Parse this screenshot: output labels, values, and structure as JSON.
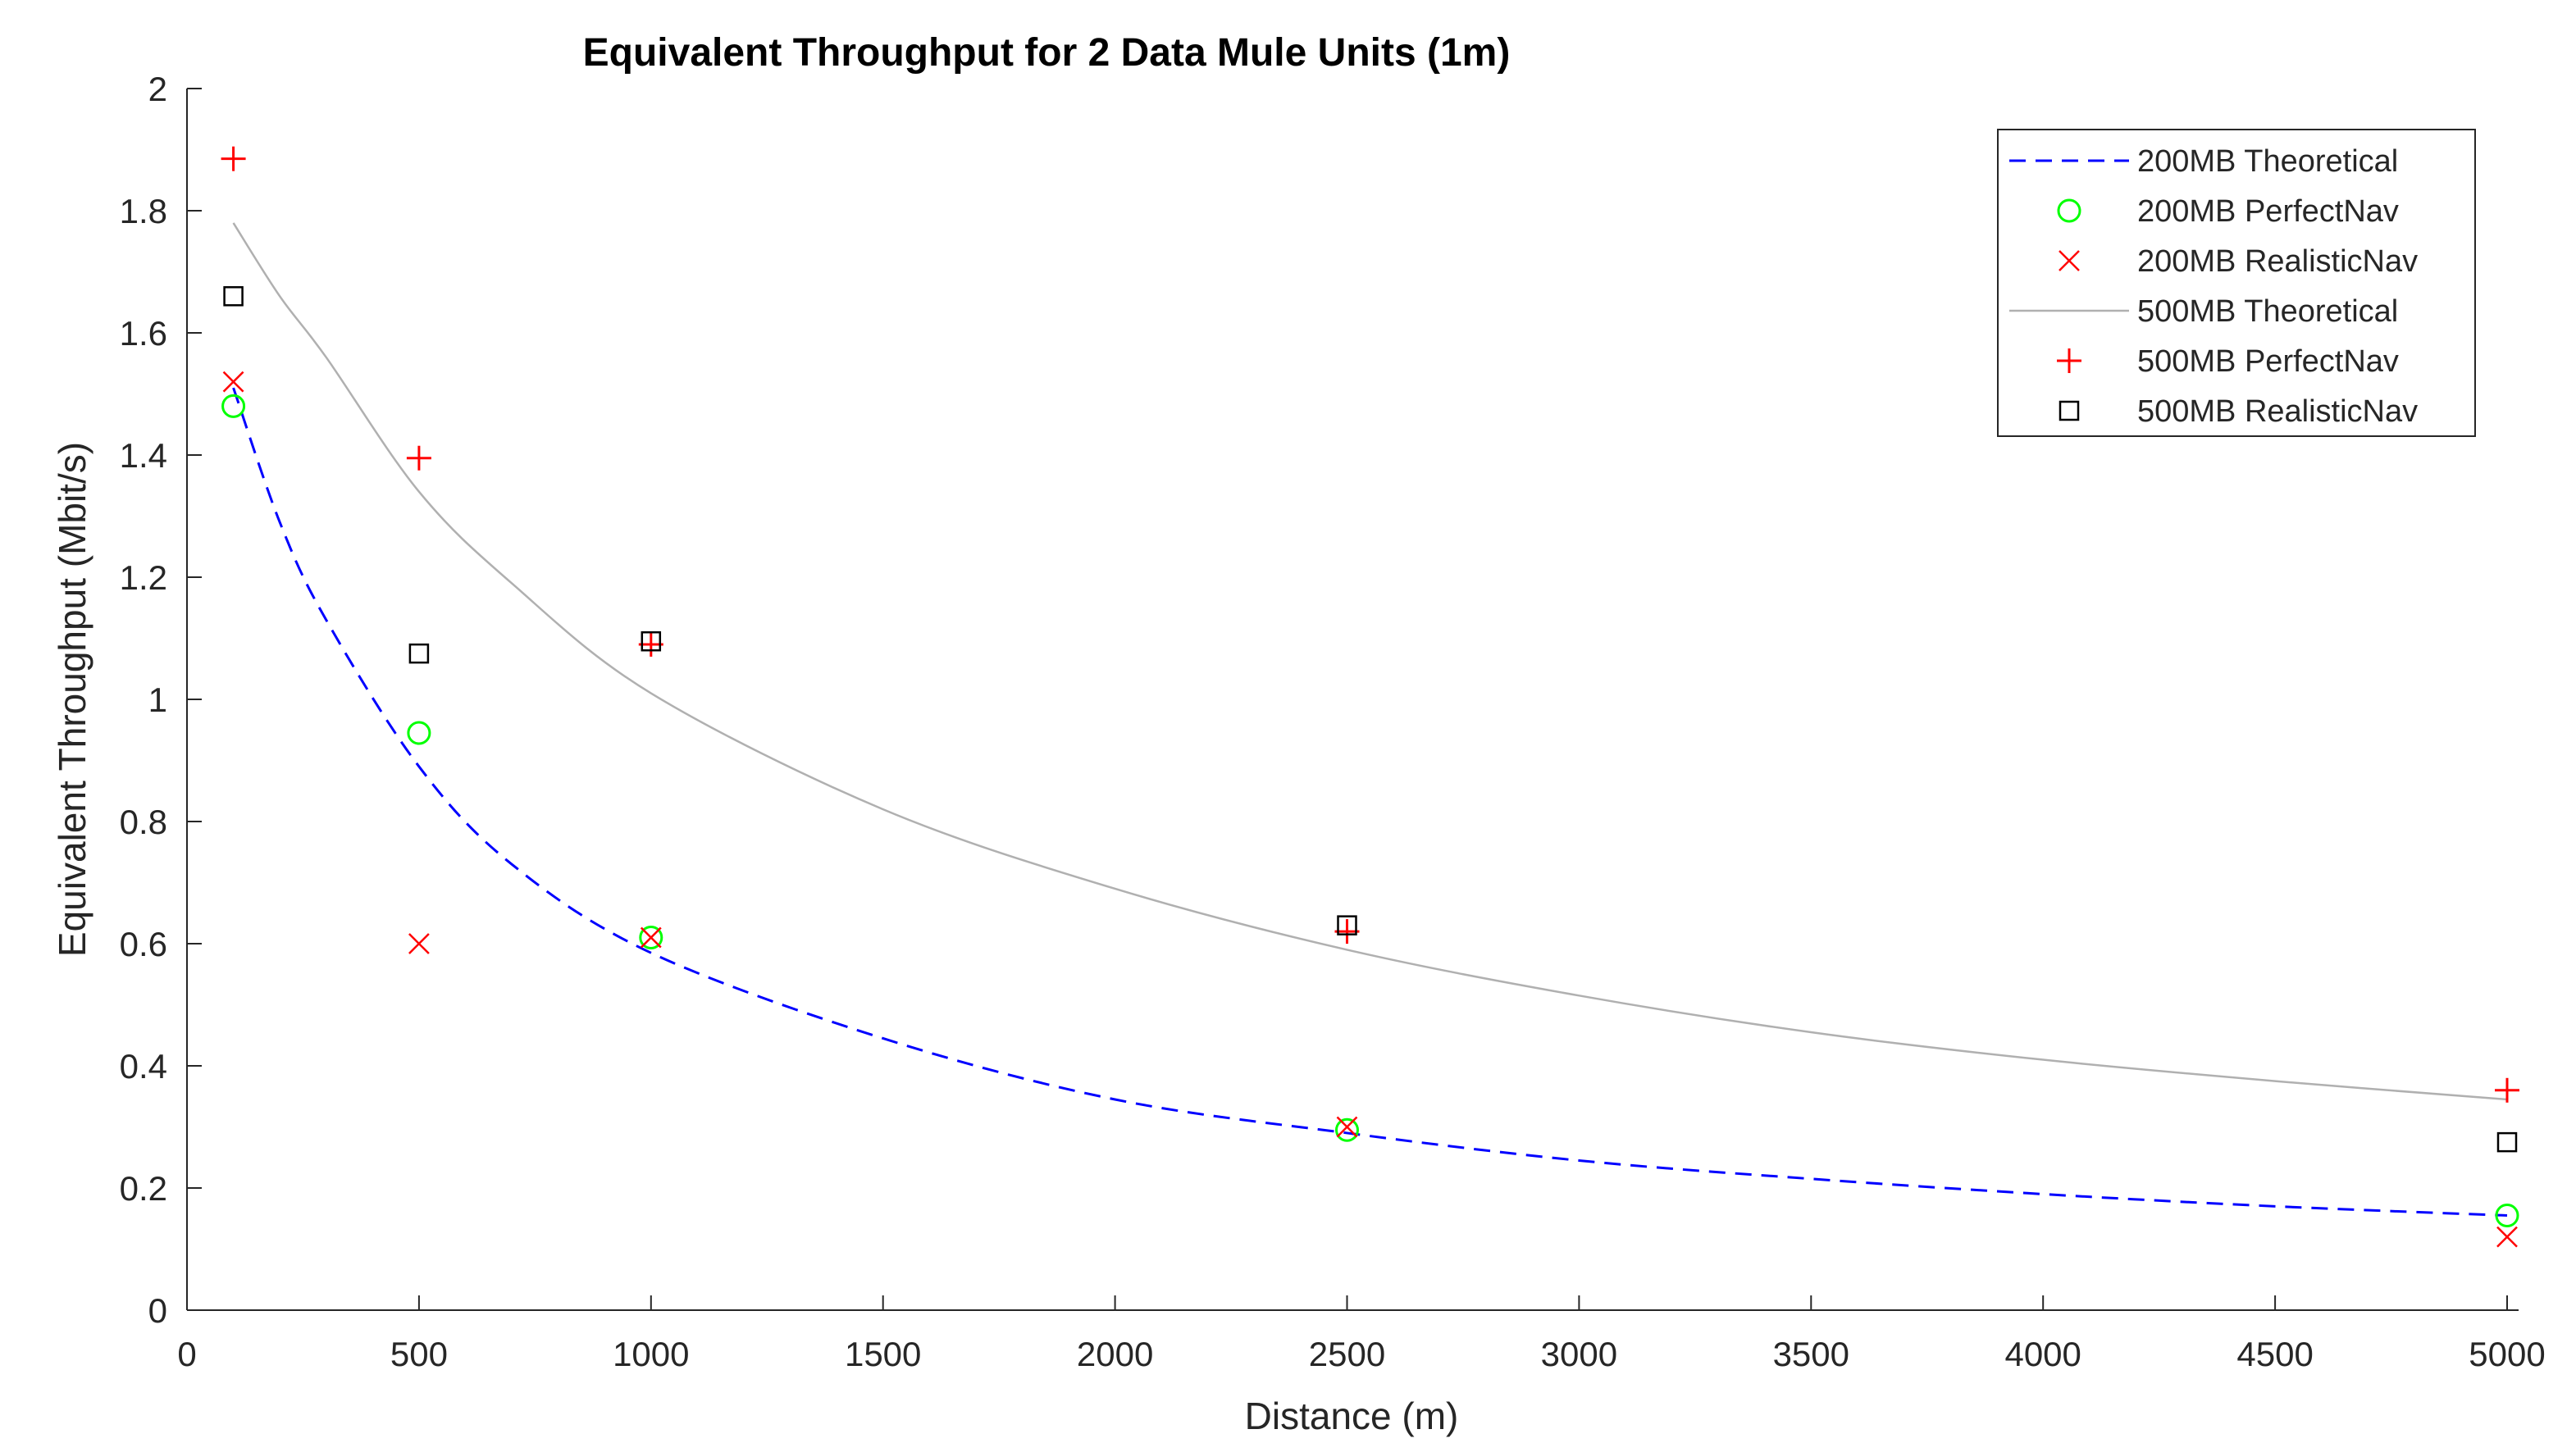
{
  "chart_data": {
    "type": "line",
    "title": "Equivalent Throughput for 2 Data Mule Units (1m)",
    "xlabel": "Distance (m)",
    "ylabel": "Equivalent Throughput (Mbit/s)",
    "xlim": [
      0,
      5000
    ],
    "ylim": [
      0,
      2
    ],
    "xticks": [
      0,
      500,
      1000,
      1500,
      2000,
      2500,
      3000,
      3500,
      4000,
      4500,
      5000
    ],
    "xtick_labels": [
      "0",
      "500",
      "1000",
      "1500",
      "2000",
      "2500",
      "3000",
      "3500",
      "4000",
      "4500",
      "5000"
    ],
    "yticks": [
      0,
      0.2,
      0.4,
      0.6,
      0.8,
      1,
      1.2,
      1.4,
      1.6,
      1.8,
      2
    ],
    "ytick_labels": [
      "0",
      "0.2",
      "0.4",
      "0.6",
      "0.8",
      "1",
      "1.2",
      "1.4",
      "1.6",
      "1.8",
      "2"
    ],
    "grid": false,
    "legend_position": "top-right",
    "series": [
      {
        "name": "200MB Theoretical",
        "style": "dashed-line",
        "color": "#0000ff",
        "x": [
          100,
          200,
          300,
          500,
          700,
          1000,
          1500,
          2000,
          2500,
          3000,
          3500,
          4000,
          4500,
          5000
        ],
        "y": [
          1.51,
          1.29,
          1.13,
          0.89,
          0.73,
          0.585,
          0.445,
          0.345,
          0.29,
          0.245,
          0.215,
          0.19,
          0.17,
          0.155
        ]
      },
      {
        "name": "200MB PerfectNav",
        "style": "circle-marker",
        "color": "#00ff00",
        "x": [
          100,
          500,
          1000,
          2500,
          5000
        ],
        "y": [
          1.48,
          0.945,
          0.61,
          0.295,
          0.155
        ]
      },
      {
        "name": "200MB RealisticNav",
        "style": "x-marker",
        "color": "#ff0000",
        "x": [
          100,
          500,
          1000,
          2500,
          5000
        ],
        "y": [
          1.52,
          0.6,
          0.61,
          0.3,
          0.12
        ]
      },
      {
        "name": "500MB Theoretical",
        "style": "solid-line",
        "color": "#b0b0b0",
        "x": [
          100,
          200,
          300,
          500,
          700,
          1000,
          1500,
          2000,
          2500,
          3000,
          3500,
          4000,
          4500,
          5000
        ],
        "y": [
          1.78,
          1.66,
          1.56,
          1.34,
          1.19,
          1.01,
          0.82,
          0.69,
          0.59,
          0.515,
          0.455,
          0.41,
          0.375,
          0.345
        ]
      },
      {
        "name": "500MB PerfectNav",
        "style": "plus-marker",
        "color": "#ff0000",
        "x": [
          100,
          500,
          1000,
          2500,
          5000
        ],
        "y": [
          1.885,
          1.395,
          1.09,
          0.62,
          0.36
        ]
      },
      {
        "name": "500MB RealisticNav",
        "style": "square-marker",
        "color": "#000000",
        "x": [
          100,
          500,
          1000,
          2500,
          5000
        ],
        "y": [
          1.66,
          1.075,
          1.095,
          0.63,
          0.275
        ]
      }
    ]
  }
}
